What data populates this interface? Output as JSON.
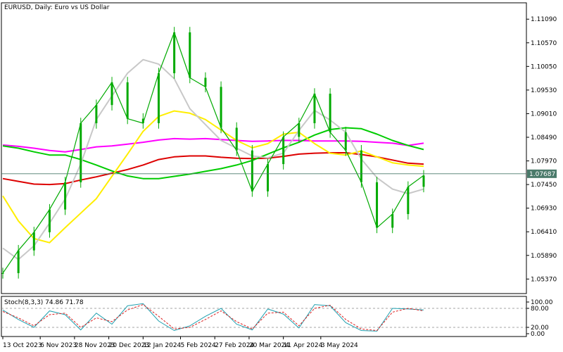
{
  "chart_data": {
    "type": "line",
    "title": "EURUSD, Daily:  Euro vs US Dollar",
    "grid": false,
    "main_panel": {
      "y_ticks": [
        "1.11090",
        "1.10570",
        "1.10050",
        "1.09530",
        "1.09010",
        "1.08490",
        "1.07970",
        "1.07450",
        "1.06930",
        "1.06410",
        "1.05890",
        "1.05370"
      ],
      "y_tick_values": [
        1.1109,
        1.1057,
        1.1005,
        1.0953,
        1.0901,
        1.0849,
        1.0797,
        1.0745,
        1.0693,
        1.0641,
        1.0589,
        1.0537
      ],
      "ylim": [
        1.0505,
        1.1145
      ],
      "current_price": "1.07687",
      "current_price_value": 1.07687,
      "candle_color": "#00aa00",
      "price_line_color": "#4a7a6a",
      "series": [
        {
          "color": "#ff00ff",
          "values": [
            1.0832,
            1.0829,
            1.0825,
            1.082,
            1.0817,
            1.0822,
            1.0828,
            1.083,
            1.0834,
            1.0838,
            1.0843,
            1.0846,
            1.0845,
            1.0846,
            1.0844,
            1.0842,
            1.084,
            1.0841,
            1.0842,
            1.0842,
            1.0841,
            1.0841,
            1.0841,
            1.084,
            1.0838,
            1.0836,
            1.0831,
            1.0836
          ]
        },
        {
          "color": "#dd0000",
          "values": [
            1.0758,
            1.0752,
            1.0746,
            1.0745,
            1.0747,
            1.0755,
            1.0762,
            1.077,
            1.0778,
            1.0788,
            1.08,
            1.0806,
            1.0808,
            1.0808,
            1.0805,
            1.0803,
            1.0802,
            1.0803,
            1.0807,
            1.0812,
            1.0814,
            1.0815,
            1.0815,
            1.0811,
            1.0806,
            1.0799,
            1.0792,
            1.079
          ]
        },
        {
          "color": "#00cc00",
          "values": [
            1.083,
            1.0825,
            1.0817,
            1.081,
            1.081,
            1.08,
            1.0788,
            1.0775,
            1.0764,
            1.0758,
            1.0758,
            1.0763,
            1.0768,
            1.0774,
            1.078,
            1.0788,
            1.0798,
            1.0812,
            1.0826,
            1.0838,
            1.0854,
            1.0866,
            1.087,
            1.0868,
            1.0856,
            1.0842,
            1.0831,
            1.0822
          ]
        },
        {
          "color": "#ffee00",
          "values": [
            1.072,
            1.0665,
            1.0626,
            1.0617,
            1.065,
            1.0682,
            1.0714,
            1.0763,
            1.0812,
            1.0862,
            1.0895,
            1.0907,
            1.0902,
            1.0888,
            1.0865,
            1.0842,
            1.0826,
            1.0835,
            1.0856,
            1.086,
            1.0835,
            1.0814,
            1.081,
            1.0819,
            1.0806,
            1.0793,
            1.0788,
            1.0785
          ]
        },
        {
          "color": "#c8c8c8",
          "values": [
            1.0605,
            1.058,
            1.061,
            1.066,
            1.0713,
            1.079,
            1.0888,
            1.094,
            1.099,
            1.102,
            1.101,
            1.0978,
            1.0912,
            1.0877,
            1.0842,
            1.0825,
            1.0808,
            1.0804,
            1.0814,
            1.0864,
            1.0908,
            1.0887,
            1.086,
            1.0801,
            1.076,
            1.0735,
            1.0725,
            1.0735
          ]
        },
        {
          "color": "#00aa00",
          "values": [
            1.055,
            1.06,
            1.064,
            1.069,
            1.075,
            1.088,
            1.092,
            1.097,
            1.089,
            1.088,
            1.099,
            1.108,
            1.098,
            1.096,
            1.087,
            1.082,
            1.073,
            1.079,
            1.085,
            1.088,
            1.0945,
            1.086,
            1.082,
            1.075,
            1.065,
            1.068,
            1.074,
            1.0765
          ]
        }
      ]
    },
    "stoch_panel": {
      "label": "Stoch(8,3,3) 74.86 71.78",
      "y_ticks": [
        "100.00",
        "80.00",
        "20.00",
        "0.00"
      ],
      "y_tick_values": [
        100,
        80,
        20,
        0
      ],
      "ylim": [
        0,
        100
      ],
      "levels": [
        80,
        20
      ],
      "series": [
        {
          "color": "#20a0b0",
          "values": [
            75,
            45,
            20,
            72,
            60,
            12,
            65,
            30,
            88,
            95,
            40,
            10,
            25,
            55,
            80,
            30,
            12,
            78,
            62,
            18,
            92,
            88,
            35,
            10,
            8,
            80,
            78,
            75
          ]
        },
        {
          "color": "#dd2020",
          "values": [
            70,
            50,
            25,
            60,
            65,
            20,
            50,
            38,
            75,
            92,
            55,
            15,
            20,
            45,
            72,
            38,
            15,
            65,
            68,
            25,
            80,
            90,
            45,
            15,
            10,
            68,
            80,
            72
          ]
        }
      ]
    },
    "x_ticks": [
      "13 Oct 2023",
      "6 Nov 2023",
      "28 Nov 2023",
      "20 Dec 2023",
      "12 Jan 2024",
      "5 Feb 2024",
      "27 Feb 2024",
      "20 Mar 2024",
      "11 Apr 2024",
      "3 May 2024"
    ],
    "x_tick_index": [
      0,
      2.4,
      4.6,
      6.8,
      9.0,
      11.4,
      13.6,
      15.8,
      18.0,
      20.4
    ],
    "x_count": 28
  }
}
